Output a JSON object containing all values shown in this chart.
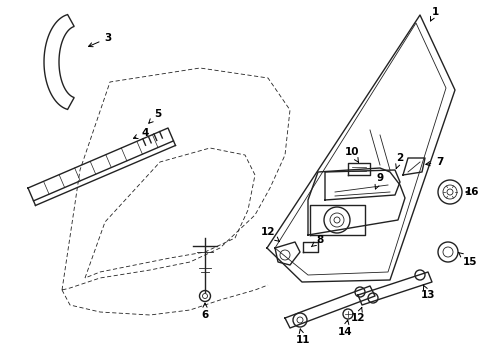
{
  "bg_color": "#ffffff",
  "line_color": "#222222",
  "figsize": [
    4.89,
    3.6
  ],
  "dpi": 100,
  "xlim": [
    0,
    489
  ],
  "ylim": [
    360,
    0
  ]
}
